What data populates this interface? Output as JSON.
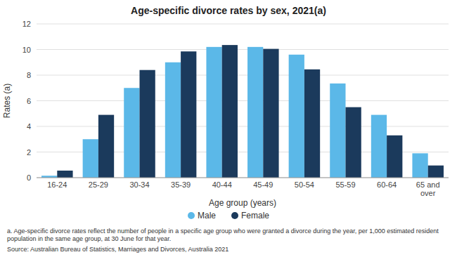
{
  "chart_data": {
    "type": "bar",
    "title": "Age-specific divorce rates by sex, 2021(a)",
    "categories": [
      "16-24",
      "25-29",
      "30-34",
      "35-39",
      "40-44",
      "45-49",
      "50-54",
      "55-59",
      "60-64",
      "65 and\nover"
    ],
    "series": [
      {
        "name": "Male",
        "color": "#5BB8E8",
        "values": [
          0.15,
          3.0,
          7.0,
          9.0,
          10.2,
          10.2,
          9.6,
          7.35,
          4.9,
          1.9
        ]
      },
      {
        "name": "Female",
        "color": "#1B3A5C",
        "values": [
          0.55,
          4.9,
          8.4,
          9.85,
          10.35,
          10.05,
          8.45,
          5.5,
          3.3,
          0.95
        ]
      }
    ],
    "xlabel": "Age group (years)",
    "ylabel": "Rates (a)",
    "ylim": [
      0,
      12
    ],
    "yticks": [
      0,
      2,
      4,
      6,
      8,
      10,
      12
    ],
    "grid": true,
    "legend": "bottom",
    "annotations": [
      "a. Age-specific divorce rates reflect the number of people in a specific age group who were granted a divorce during the year, per 1,000 estimated resident\npopulation in the same age group, at 30 June for that year.",
      "Source: Australian Bureau of Statistics, Marriages and Divorces, Australia 2021"
    ]
  }
}
